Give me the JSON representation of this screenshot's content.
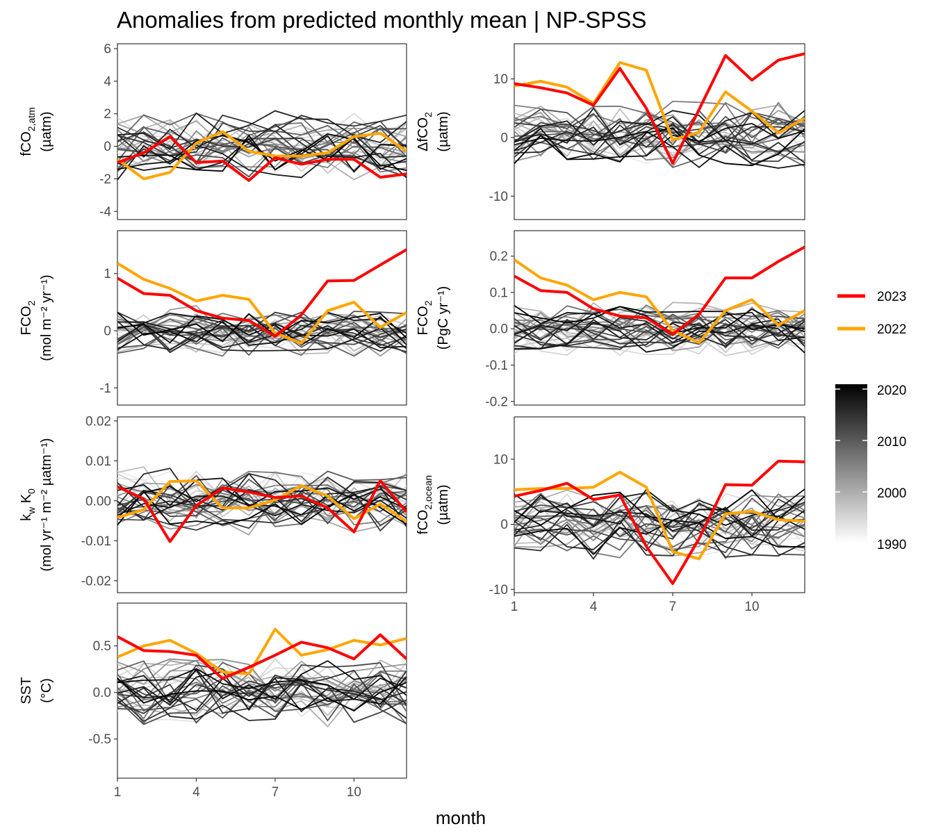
{
  "figure": {
    "title": "Anomalies from predicted monthly mean | NP-SPSS",
    "xlabel": "month"
  },
  "legend": {
    "highlight": [
      {
        "label": "2023",
        "color": "#ff0000"
      },
      {
        "label": "2022",
        "color": "#ffa500"
      }
    ],
    "gradient": {
      "labels": [
        "2020",
        "2010",
        "2000",
        "1990"
      ],
      "low_color": "#ffffff",
      "high_color": "#000000",
      "range": [
        1990,
        2021
      ]
    }
  },
  "chart_data": [
    {
      "type": "line",
      "panel": "fco2-atm",
      "ylabel": {
        "main": "fCO",
        "sub": "2,atm",
        "units": "(µatm)"
      },
      "x": [
        1,
        2,
        3,
        4,
        5,
        6,
        7,
        8,
        9,
        10,
        11,
        12
      ],
      "xlim": [
        1,
        12
      ],
      "ylim": [
        -4.5,
        6.3
      ],
      "yticks": [
        -4,
        -2,
        0,
        2,
        4,
        6
      ],
      "ytick_labels": [
        "-4",
        "-2",
        "0",
        "2",
        "4",
        "6"
      ],
      "xticks": [],
      "xtick_labels": [],
      "series": [
        {
          "name": "2023",
          "values": [
            -1.0,
            -0.4,
            0.6,
            -1.0,
            -0.9,
            -2.1,
            -0.7,
            -1.1,
            -0.8,
            -0.8,
            -1.9,
            -1.7
          ]
        },
        {
          "name": "2022",
          "values": [
            -0.8,
            -2.0,
            -1.6,
            0.2,
            0.9,
            -0.3,
            -0.6,
            -0.6,
            -0.4,
            0.6,
            0.8,
            -0.3
          ]
        }
      ],
      "background": {
        "year_range": [
          1990,
          2021
        ],
        "amplitude": 1.6
      }
    },
    {
      "type": "line",
      "panel": "delta-fco2",
      "ylabel": {
        "main": "ΔfCO",
        "sub": "2",
        "units": "(µatm)"
      },
      "x": [
        1,
        2,
        3,
        4,
        5,
        6,
        7,
        8,
        9,
        10,
        11,
        12
      ],
      "xlim": [
        1,
        12
      ],
      "ylim": [
        -14,
        16
      ],
      "yticks": [
        -10,
        0,
        10
      ],
      "ytick_labels": [
        "-10",
        "0",
        "10"
      ],
      "xticks": [],
      "xtick_labels": [],
      "series": [
        {
          "name": "2023",
          "values": [
            9.2,
            8.5,
            7.6,
            5.5,
            11.8,
            5.0,
            -4.4,
            4.8,
            14.0,
            9.8,
            13.2,
            14.3
          ]
        },
        {
          "name": "2022",
          "values": [
            8.8,
            9.6,
            8.6,
            5.8,
            12.8,
            11.5,
            -0.4,
            0.9,
            7.8,
            4.5,
            0.8,
            3.3
          ]
        }
      ],
      "background": {
        "year_range": [
          1990,
          2021
        ],
        "amplitude": 4.5
      }
    },
    {
      "type": "line",
      "panel": "fco2-flux-area",
      "ylabel": {
        "main": "FCO",
        "sub": "2",
        "units": "(mol m⁻² yr⁻¹)"
      },
      "x": [
        1,
        2,
        3,
        4,
        5,
        6,
        7,
        8,
        9,
        10,
        11,
        12
      ],
      "xlim": [
        1,
        12
      ],
      "ylim": [
        -1.3,
        1.75
      ],
      "yticks": [
        -1,
        0,
        1
      ],
      "ytick_labels": [
        "-1",
        "0",
        "1"
      ],
      "xticks": [],
      "xtick_labels": [],
      "series": [
        {
          "name": "2023",
          "values": [
            0.92,
            0.65,
            0.62,
            0.35,
            0.22,
            0.18,
            -0.1,
            0.28,
            0.87,
            0.88,
            1.15,
            1.42
          ]
        },
        {
          "name": "2022",
          "values": [
            1.18,
            0.9,
            0.74,
            0.52,
            0.62,
            0.55,
            -0.04,
            -0.22,
            0.35,
            0.5,
            0.06,
            0.32
          ]
        }
      ],
      "background": {
        "year_range": [
          1990,
          2021
        ],
        "amplitude": 0.35
      }
    },
    {
      "type": "line",
      "panel": "fco2-flux-total",
      "ylabel": {
        "main": "FCO",
        "sub": "2",
        "units": "(PgC yr⁻¹)"
      },
      "x": [
        1,
        2,
        3,
        4,
        5,
        6,
        7,
        8,
        9,
        10,
        11,
        12
      ],
      "xlim": [
        1,
        12
      ],
      "ylim": [
        -0.21,
        0.27
      ],
      "yticks": [
        -0.2,
        -0.1,
        0.0,
        0.1,
        0.2
      ],
      "ytick_labels": [
        "-0.2",
        "-0.1",
        "0.0",
        "0.1",
        "0.2"
      ],
      "xticks": [],
      "xtick_labels": [],
      "series": [
        {
          "name": "2023",
          "values": [
            0.145,
            0.105,
            0.1,
            0.055,
            0.035,
            0.03,
            -0.015,
            0.04,
            0.14,
            0.14,
            0.185,
            0.225
          ]
        },
        {
          "name": "2022",
          "values": [
            0.19,
            0.14,
            0.12,
            0.08,
            0.1,
            0.088,
            -0.005,
            -0.038,
            0.05,
            0.08,
            0.01,
            0.05
          ]
        }
      ],
      "background": {
        "year_range": [
          1990,
          2021
        ],
        "amplitude": 0.055
      }
    },
    {
      "type": "line",
      "panel": "kw-k0",
      "ylabel": {
        "main": "k",
        "sub": "w",
        "main2": " K",
        "sub2": "0",
        "units": "(mol yr⁻¹ m⁻² µatm⁻¹)"
      },
      "x": [
        1,
        2,
        3,
        4,
        5,
        6,
        7,
        8,
        9,
        10,
        11,
        12
      ],
      "xlim": [
        1,
        12
      ],
      "ylim": [
        -0.023,
        0.021
      ],
      "yticks": [
        -0.02,
        -0.01,
        0.0,
        0.01,
        0.02
      ],
      "ytick_labels": [
        "-0.02",
        "-0.01",
        "0.00",
        "0.01",
        "0.02"
      ],
      "xticks": [],
      "xtick_labels": [],
      "series": [
        {
          "name": "2023",
          "values": [
            0.0035,
            0.0005,
            -0.0102,
            -0.0012,
            0.0032,
            0.0022,
            0.0008,
            0.0012,
            -0.0018,
            -0.0078,
            0.005,
            -0.0028
          ]
        },
        {
          "name": "2022",
          "values": [
            -0.0042,
            -0.0022,
            0.0048,
            0.005,
            -0.0018,
            -0.0018,
            0.0002,
            0.0038,
            0.0012,
            -0.0045,
            -0.0008,
            -0.0052
          ]
        }
      ],
      "background": {
        "year_range": [
          1990,
          2021
        ],
        "amplitude": 0.0065
      }
    },
    {
      "type": "line",
      "panel": "fco2-ocean",
      "ylabel": {
        "main": "fCO",
        "sub": "2,ocean",
        "units": "(µatm)"
      },
      "x": [
        1,
        2,
        3,
        4,
        5,
        6,
        7,
        8,
        9,
        10,
        11,
        12
      ],
      "xlim": [
        1,
        12
      ],
      "ylim": [
        -10.5,
        16.5
      ],
      "yticks": [
        -10,
        0,
        10
      ],
      "ytick_labels": [
        "-10",
        "0",
        "10"
      ],
      "xticks": [
        1,
        4,
        7,
        10
      ],
      "xtick_labels": [
        "1",
        "4",
        "7",
        "10"
      ],
      "series": [
        {
          "name": "2023",
          "values": [
            4.3,
            5.2,
            6.3,
            3.8,
            4.5,
            -3.4,
            -9.1,
            -2.2,
            6.1,
            6.0,
            9.7,
            9.6
          ]
        },
        {
          "name": "2022",
          "values": [
            5.3,
            5.5,
            5.5,
            5.7,
            8.0,
            5.7,
            -4.2,
            -5.3,
            1.6,
            2.0,
            0.7,
            0.5
          ]
        }
      ],
      "background": {
        "year_range": [
          1990,
          2021
        ],
        "amplitude": 4.0
      }
    },
    {
      "type": "line",
      "panel": "sst",
      "ylabel": {
        "main": "SST",
        "sub": "",
        "units": "(°C)"
      },
      "x": [
        1,
        2,
        3,
        4,
        5,
        6,
        7,
        8,
        9,
        10,
        11,
        12
      ],
      "xlim": [
        1,
        12
      ],
      "ylim": [
        -0.92,
        0.96
      ],
      "yticks": [
        -0.5,
        0.0,
        0.5
      ],
      "ytick_labels": [
        "-0.5",
        "0.0",
        "0.5"
      ],
      "xticks": [
        1,
        4,
        7,
        10
      ],
      "xtick_labels": [
        "1",
        "4",
        "7",
        "10"
      ],
      "series": [
        {
          "name": "2023",
          "values": [
            0.6,
            0.45,
            0.44,
            0.4,
            0.15,
            0.27,
            0.4,
            0.54,
            0.48,
            0.36,
            0.62,
            0.36
          ]
        },
        {
          "name": "2022",
          "values": [
            0.38,
            0.5,
            0.56,
            0.42,
            0.22,
            0.2,
            0.68,
            0.4,
            0.46,
            0.56,
            0.51,
            0.58
          ]
        }
      ],
      "background": {
        "year_range": [
          1990,
          2021
        ],
        "amplitude": 0.3
      }
    }
  ]
}
